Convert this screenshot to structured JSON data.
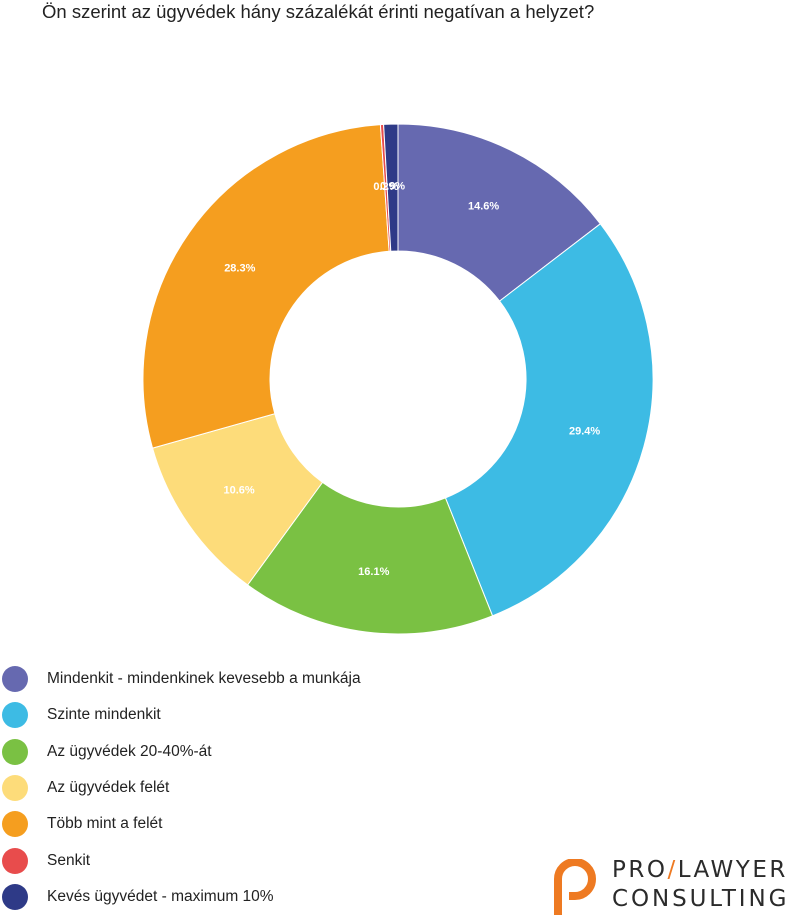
{
  "chart_data": {
    "type": "pie",
    "donut": true,
    "title": "Ön szerint az ügyvédek hány százalékát érinti negatívan a helyzet?",
    "legend_placement": "bottom-left",
    "series": [
      {
        "name": "Mindenkit - mindenkinek kevesebb a munkája",
        "value": 14.6,
        "label": "14.6%",
        "color": "#6669b0"
      },
      {
        "name": "Szinte mindenkit",
        "value": 29.4,
        "label": "29.4%",
        "color": "#3dbbe4"
      },
      {
        "name": "Az ügyvédek 20-40%-át",
        "value": 16.1,
        "label": "16.1%",
        "color": "#7ac143"
      },
      {
        "name": "Az ügyvédek felét",
        "value": 10.6,
        "label": "10.6%",
        "color": "#fddc7a"
      },
      {
        "name": "Több mint a felét",
        "value": 28.3,
        "label": "28.3%",
        "color": "#f59e1f"
      },
      {
        "name": "Senkit",
        "value": 0.2,
        "label": "0.2%",
        "color": "#e84c4c"
      },
      {
        "name": "Kevés ügyvédet - maximum 10%",
        "value": 0.9,
        "label": "0.9%",
        "color": "#2e3a87"
      }
    ]
  },
  "branding": {
    "logo_line1_left": "PRO",
    "logo_slash": "/",
    "logo_line1_right": "LAWYER",
    "logo_line2": "CONSULTING",
    "logo_color": "#ee7a22"
  }
}
